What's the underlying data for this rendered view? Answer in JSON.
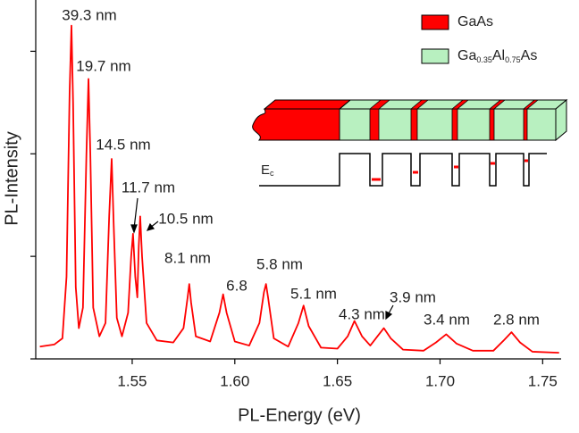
{
  "chart_data": {
    "type": "line",
    "xlabel": "PL-Energy (eV)",
    "ylabel": "PL-Intensity",
    "xlim": [
      1.503,
      1.759
    ],
    "ylim": [
      0,
      3.5
    ],
    "xticks": [
      1.55,
      {
        "value": 1.6,
        "label": "1.60"
      },
      1.65,
      {
        "value": 1.7,
        "label": "1.70"
      },
      1.75
    ],
    "yticks": [
      0,
      1,
      2,
      3
    ],
    "series": [
      {
        "color": "#ff0000",
        "x": [
          1.505,
          1.512,
          1.516,
          1.518,
          1.5195,
          1.5204,
          1.5212,
          1.5225,
          1.524,
          1.526,
          1.5277,
          1.5287,
          1.5296,
          1.531,
          1.534,
          1.537,
          1.5388,
          1.54,
          1.541,
          1.5425,
          1.545,
          1.548,
          1.5495,
          1.5504,
          1.5515,
          1.5525,
          1.5532,
          1.5539,
          1.5548,
          1.557,
          1.562,
          1.57,
          1.575,
          1.577,
          1.5778,
          1.5787,
          1.581,
          1.588,
          1.5925,
          1.5943,
          1.596,
          1.6,
          1.607,
          1.612,
          1.6142,
          1.6152,
          1.6162,
          1.619,
          1.626,
          1.631,
          1.6335,
          1.636,
          1.642,
          1.65,
          1.655,
          1.6583,
          1.662,
          1.666,
          1.6695,
          1.6726,
          1.676,
          1.682,
          1.692,
          1.698,
          1.703,
          1.708,
          1.716,
          1.726,
          1.731,
          1.7348,
          1.739,
          1.745,
          1.758
        ],
        "values": [
          0.12,
          0.14,
          0.2,
          0.8,
          2.6,
          3.25,
          2.5,
          0.7,
          0.3,
          0.5,
          2.0,
          2.73,
          2.0,
          0.5,
          0.22,
          0.35,
          1.4,
          1.95,
          1.3,
          0.4,
          0.22,
          0.45,
          1.0,
          1.22,
          0.8,
          0.6,
          1.1,
          1.39,
          1.0,
          0.35,
          0.18,
          0.16,
          0.3,
          0.6,
          0.73,
          0.55,
          0.22,
          0.17,
          0.45,
          0.63,
          0.45,
          0.17,
          0.13,
          0.35,
          0.65,
          0.73,
          0.6,
          0.2,
          0.12,
          0.35,
          0.52,
          0.32,
          0.11,
          0.1,
          0.22,
          0.37,
          0.22,
          0.13,
          0.22,
          0.3,
          0.2,
          0.09,
          0.08,
          0.16,
          0.24,
          0.15,
          0.08,
          0.08,
          0.18,
          0.26,
          0.16,
          0.07,
          0.06
        ]
      }
    ],
    "annotations": [
      "39.3 nm",
      "19.7 nm",
      "14.5 nm",
      "11.7 nm",
      "10.5 nm",
      "8.1 nm",
      "6.8",
      "5.8 nm",
      "5.1 nm",
      "4.3 nm",
      "3.9 nm",
      "3.4 nm",
      "2.8 nm"
    ],
    "inset": {
      "legend": [
        {
          "parts": [
            "GaAs"
          ],
          "color": "#ff0000"
        },
        {
          "parts": [
            "Ga",
            "0.35",
            "Al",
            "0.75",
            "As"
          ],
          "color": "#b8f0c0"
        }
      ],
      "band_label": [
        "E",
        "c"
      ]
    }
  }
}
